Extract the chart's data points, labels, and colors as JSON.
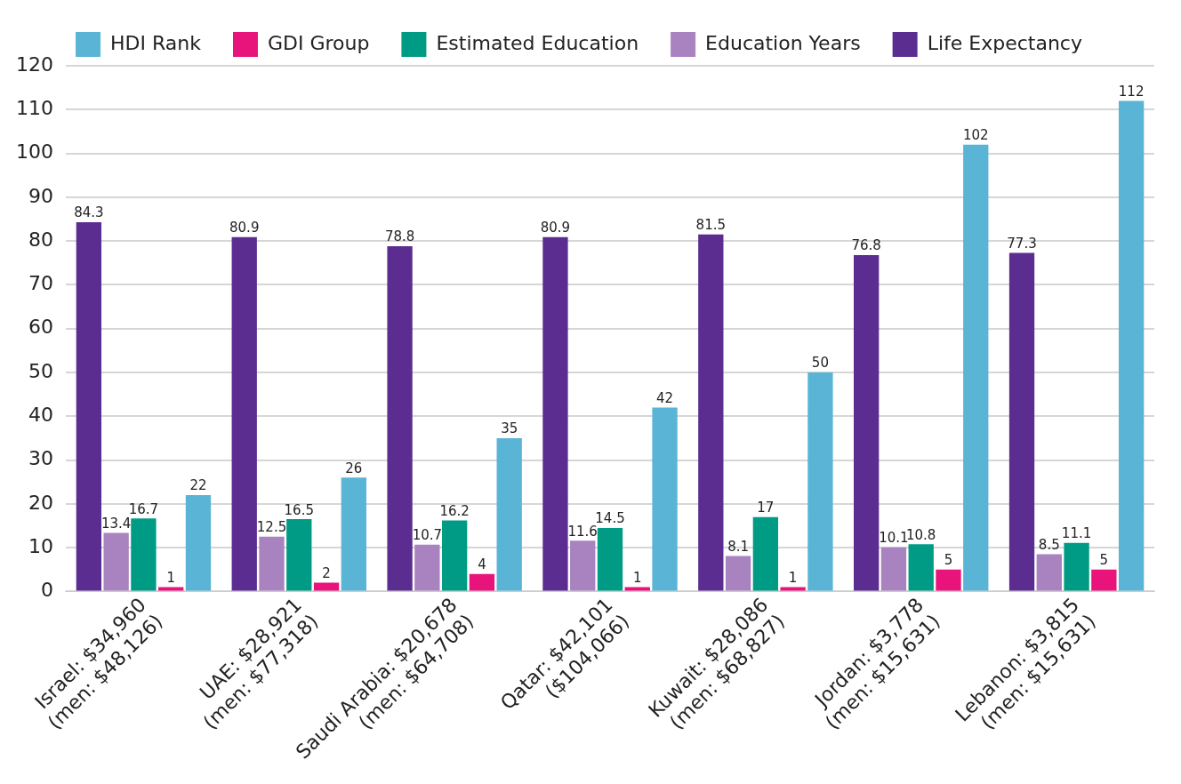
{
  "chart_data": {
    "type": "bar",
    "categories": [
      "Israel: $34,960\n(men: $48,126)",
      "UAE: $28,921\n(men: $77,318)",
      "Saudi Arabia: $20,678\n(men: $64,708)",
      "Qatar: $42,101\n($104,066)",
      "Kuwait: $28,086\n(men: $68,827)",
      "Jordan: $3,778\n(men: $15,631)",
      "Lebanon: $3,815\n(men: $15,631)"
    ],
    "series": [
      {
        "name": "Life Expectancy",
        "color": "#5c2d91",
        "values": [
          84.3,
          80.9,
          78.8,
          80.9,
          81.5,
          76.8,
          77.3
        ]
      },
      {
        "name": "Education Years",
        "color": "#a983bf",
        "values": [
          13.4,
          12.5,
          10.7,
          11.6,
          8.1,
          10.1,
          8.5
        ]
      },
      {
        "name": "Estimated Education",
        "color": "#009b85",
        "values": [
          16.7,
          16.5,
          16.2,
          14.5,
          17,
          10.8,
          11.1
        ]
      },
      {
        "name": "GDI Group",
        "color": "#e8137b",
        "values": [
          1,
          2,
          4,
          1,
          1,
          5,
          5
        ]
      },
      {
        "name": "HDI Rank",
        "color": "#5ab4d6",
        "values": [
          22,
          26,
          35,
          42,
          50,
          102,
          112
        ]
      }
    ],
    "ylim": [
      0,
      120
    ],
    "yticks": [
      0,
      10,
      20,
      30,
      40,
      50,
      60,
      70,
      80,
      90,
      100,
      110,
      120
    ],
    "grid": "y",
    "legend": "top",
    "data_labels": true
  }
}
